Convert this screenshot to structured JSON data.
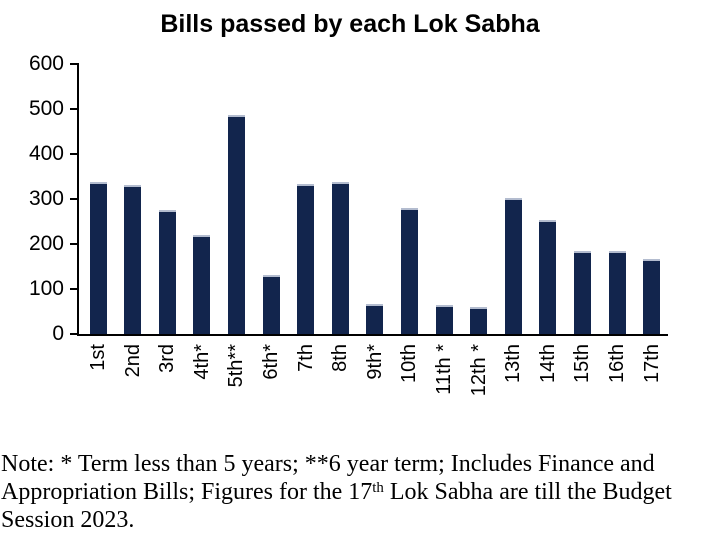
{
  "title": "Bills passed by each Lok Sabha",
  "chart_data": {
    "type": "bar",
    "title": "Bills passed by each Lok Sabha",
    "categories": [
      "1st",
      "2nd",
      "3rd",
      "4th*",
      "5th**",
      "6th*",
      "7th",
      "8th",
      "9th*",
      "10th",
      "11th *",
      "12th *",
      "13th",
      "14th",
      "15th",
      "16th",
      "17th"
    ],
    "values": [
      333,
      327,
      270,
      216,
      483,
      127,
      329,
      333,
      63,
      275,
      60,
      56,
      297,
      249,
      179,
      179,
      163
    ],
    "xlabel": "",
    "ylabel": "",
    "ylim": [
      0,
      600
    ],
    "yticks": [
      0,
      100,
      200,
      300,
      400,
      500,
      600
    ],
    "grid": false,
    "legend": null,
    "bar_color": "#12254d",
    "bar_top_edge_color": "#b3bccf",
    "axis_color": "#000000"
  },
  "note": {
    "line1": "Note: * Term less than 5 years; **6 year term; Includes Finance and",
    "line2_before": "Appropriation Bills; Figures for the 17",
    "line2_superscript": "th",
    "line2_after": " Lok Sabha are till the Budget",
    "line3": "Session 2023."
  }
}
